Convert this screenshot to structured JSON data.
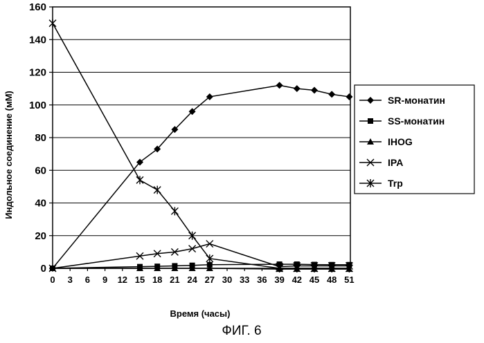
{
  "chart_data": {
    "type": "line",
    "title": "",
    "caption": "ФИГ. 6",
    "xlabel": "Время (часы)",
    "ylabel": "Индольное соединение (мМ)",
    "ylim": [
      0,
      160
    ],
    "yticks": [
      0,
      20,
      40,
      60,
      80,
      100,
      120,
      140,
      160
    ],
    "xticks": [
      0,
      3,
      6,
      9,
      12,
      15,
      18,
      21,
      24,
      27,
      30,
      33,
      36,
      39,
      42,
      45,
      48,
      51
    ],
    "grid": "horizontal",
    "legend_position": "right",
    "series": [
      {
        "name": "SR-монатин",
        "marker": "diamond",
        "x": [
          0,
          15,
          18,
          21,
          24,
          27,
          39,
          42,
          45,
          48,
          51
        ],
        "y": [
          0,
          65,
          73,
          85,
          96,
          105,
          112,
          110,
          109,
          106.5,
          105
        ]
      },
      {
        "name": "SS-монатин",
        "marker": "square",
        "x": [
          0,
          15,
          18,
          21,
          24,
          27,
          39,
          42,
          45,
          48,
          51
        ],
        "y": [
          0,
          1,
          1.2,
          1.5,
          1.8,
          2.2,
          2.5,
          2.5,
          2.3,
          2.2,
          2.2
        ]
      },
      {
        "name": "IHOG",
        "marker": "triangle",
        "x": [
          0,
          15,
          18,
          21,
          24,
          27,
          39,
          42,
          45,
          48,
          51
        ],
        "y": [
          0,
          0,
          0,
          0,
          0,
          0,
          -0.5,
          -0.5,
          -0.5,
          -0.5,
          -0.5
        ]
      },
      {
        "name": "IPA",
        "marker": "x",
        "x": [
          0,
          15,
          18,
          21,
          24,
          27,
          39,
          42,
          45,
          48,
          51
        ],
        "y": [
          0,
          7.5,
          9,
          10,
          12,
          15,
          1,
          1.5,
          1.5,
          1.5,
          1.5
        ]
      },
      {
        "name": "Trp",
        "marker": "asterisk",
        "x": [
          0,
          15,
          18,
          21,
          24,
          27,
          39,
          42,
          45,
          48,
          51
        ],
        "y": [
          150,
          54,
          48,
          35,
          20,
          6,
          0,
          0,
          0,
          0,
          0
        ]
      }
    ]
  }
}
